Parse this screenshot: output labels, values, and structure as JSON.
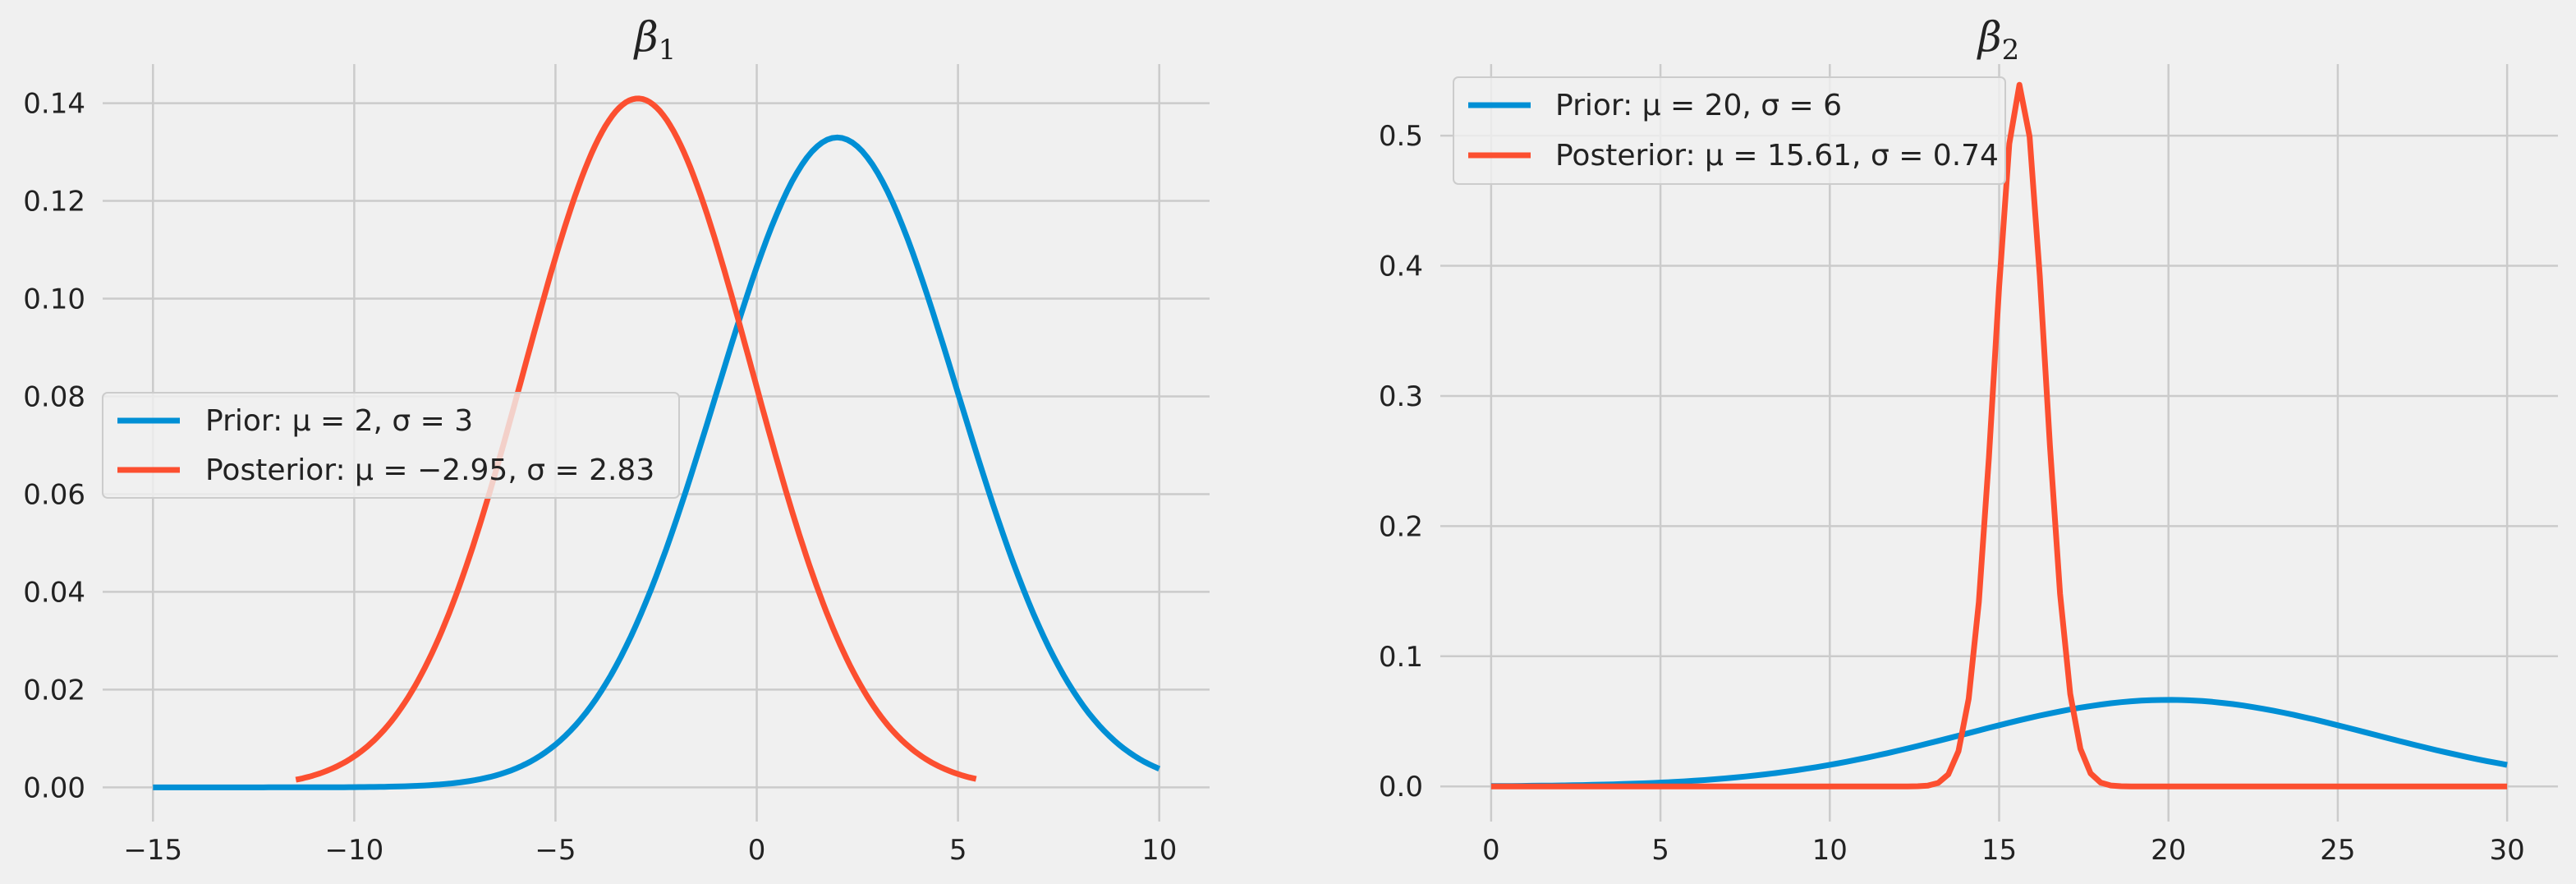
{
  "chart_data": [
    {
      "type": "line",
      "title": "β1",
      "title_parts": {
        "symbol": "β",
        "subscript": "1"
      },
      "xlim": [
        -16.25,
        11.25
      ],
      "ylim": [
        -0.007,
        0.148
      ],
      "xticks": [
        -15,
        -10,
        -5,
        0,
        5,
        10
      ],
      "xtick_labels": [
        "−15",
        "−10",
        "−5",
        "0",
        "5",
        "10"
      ],
      "yticks": [
        0.0,
        0.02,
        0.04,
        0.06,
        0.08,
        0.1,
        0.12,
        0.14
      ],
      "ytick_labels": [
        "0.00",
        "0.02",
        "0.04",
        "0.06",
        "0.08",
        "0.10",
        "0.12",
        "0.14"
      ],
      "grid": true,
      "legend_position": "center-left",
      "series": [
        {
          "name": "Prior: μ = 2, σ = 3",
          "distribution": "normal",
          "mu": 2,
          "sigma": 3,
          "x_range": [
            -15,
            10
          ],
          "n_points": 201,
          "color": "#008fd5"
        },
        {
          "name": "Posterior: μ = −2.95, σ = 2.83",
          "distribution": "normal",
          "mu": -2.95,
          "sigma": 2.83,
          "x_range": [
            -11.45,
            5.45
          ],
          "n_points": 201,
          "color": "#fc4f30"
        }
      ]
    },
    {
      "type": "line",
      "title": "β2",
      "title_parts": {
        "symbol": "β",
        "subscript": "2"
      },
      "xlim": [
        -1.5,
        31.5
      ],
      "ylim": [
        -0.027,
        0.555
      ],
      "xticks": [
        0,
        5,
        10,
        15,
        20,
        25,
        30
      ],
      "xtick_labels": [
        "0",
        "5",
        "10",
        "15",
        "20",
        "25",
        "30"
      ],
      "yticks": [
        0.0,
        0.1,
        0.2,
        0.3,
        0.4,
        0.5
      ],
      "ytick_labels": [
        "0.0",
        "0.1",
        "0.2",
        "0.3",
        "0.4",
        "0.5"
      ],
      "grid": true,
      "legend_position": "top-left",
      "series": [
        {
          "name": "Prior: μ = 20, σ = 6",
          "distribution": "normal",
          "mu": 20,
          "sigma": 6,
          "x_range": [
            0,
            30
          ],
          "n_points": 101,
          "color": "#008fd5"
        },
        {
          "name": "Posterior: μ = 15.61, σ = 0.74",
          "distribution": "normal",
          "mu": 15.61,
          "sigma": 0.74,
          "x_range": [
            0,
            30
          ],
          "n_points": 101,
          "color": "#fc4f30"
        }
      ]
    }
  ],
  "colors": {
    "background": "#f0f0f0",
    "grid": "#cbcbcb",
    "prior": "#008fd5",
    "posterior": "#fc4f30"
  }
}
